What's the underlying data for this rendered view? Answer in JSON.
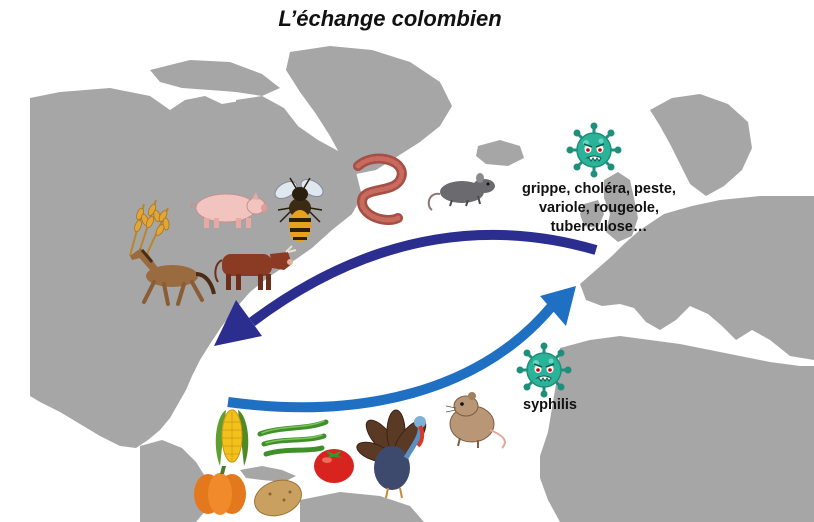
{
  "title": "L’échange colombien",
  "old_to_new_disease_lines": [
    "grippe, choléra, peste,",
    "variole, rougeole,",
    "tuberculose…"
  ],
  "new_to_old_disease": "syphilis",
  "old_to_new_items": [
    "wheat-icon",
    "pig-icon",
    "bee-icon",
    "earthworm-icon",
    "rat-icon",
    "horse-icon",
    "cow-icon",
    "virus-icon"
  ],
  "new_to_old_items": [
    "corn-icon",
    "green-bean-icon",
    "tomato-icon",
    "turkey-icon",
    "guinea-pig-icon",
    "pumpkin-icon",
    "potato-icon",
    "virus-icon"
  ],
  "colors": {
    "land": "#a6a6a6",
    "sea": "#ffffff",
    "arrow_to_americas": "#2b2d8f",
    "arrow_to_europe": "#1f6fc2",
    "virus": "#2bb39a"
  }
}
